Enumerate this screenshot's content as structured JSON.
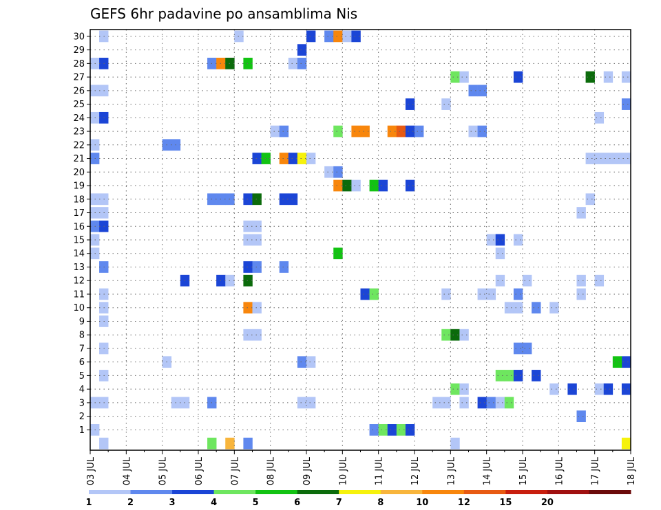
{
  "chart_data": {
    "type": "heatmap",
    "title": "GEFS 6hr padavine po ansamblima Nis",
    "xlabel": "",
    "ylabel": "",
    "x_tick_labels": [
      "03 JUL",
      "04 JUL",
      "05 JUL",
      "06 JUL",
      "07 JUL",
      "08 JUL",
      "09 JUL",
      "10 JUL",
      "11 JUL",
      "12 JUL",
      "13 JUL",
      "14 JUL",
      "15 JUL",
      "16 JUL",
      "17 JUL",
      "18 JUL"
    ],
    "y_tick_labels": [
      "1",
      "2",
      "3",
      "4",
      "5",
      "6",
      "7",
      "8",
      "9",
      "10",
      "11",
      "12",
      "13",
      "14",
      "15",
      "16",
      "17",
      "18",
      "19",
      "20",
      "21",
      "22",
      "23",
      "24",
      "25",
      "26",
      "27",
      "28",
      "29",
      "30"
    ],
    "xlim": [
      0,
      60
    ],
    "ylim": [
      0,
      30
    ],
    "grid": true,
    "legend": {
      "placement": "bottom",
      "colors": [
        "#b3c6f7",
        "#5f88ee",
        "#1b45d6",
        "#6ee65f",
        "#12c312",
        "#0b6b0b",
        "#f6f20c",
        "#f8b53c",
        "#f8860c",
        "#e85a12",
        "#c81e0e",
        "#a01010",
        "#6b0a0a"
      ],
      "labels": [
        "1",
        "2",
        "3",
        "4",
        "5",
        "6",
        "7",
        "8",
        "10",
        "12",
        "15",
        "20"
      ]
    },
    "cells": [
      [
        1,
        30,
        1
      ],
      [
        16,
        30,
        1
      ],
      [
        24,
        30,
        3
      ],
      [
        26,
        30,
        2
      ],
      [
        27,
        30,
        9
      ],
      [
        28,
        30,
        1
      ],
      [
        29,
        30,
        3
      ],
      [
        23,
        29,
        3
      ],
      [
        0,
        28,
        1
      ],
      [
        1,
        28,
        3
      ],
      [
        13,
        28,
        2
      ],
      [
        14,
        28,
        9
      ],
      [
        15,
        28,
        6
      ],
      [
        17,
        28,
        5
      ],
      [
        22,
        28,
        1
      ],
      [
        23,
        28,
        2
      ],
      [
        40,
        27,
        4
      ],
      [
        41,
        27,
        1
      ],
      [
        47,
        27,
        3
      ],
      [
        55,
        27,
        6
      ],
      [
        57,
        27,
        1
      ],
      [
        59,
        27,
        1
      ],
      [
        0,
        26,
        1
      ],
      [
        1,
        26,
        1
      ],
      [
        42,
        26,
        2
      ],
      [
        43,
        26,
        2
      ],
      [
        35,
        25,
        3
      ],
      [
        39,
        25,
        1
      ],
      [
        59,
        25,
        2
      ],
      [
        0,
        24,
        1
      ],
      [
        1,
        24,
        3
      ],
      [
        56,
        24,
        1
      ],
      [
        20,
        23,
        1
      ],
      [
        21,
        23,
        2
      ],
      [
        27,
        23,
        4
      ],
      [
        29,
        23,
        9
      ],
      [
        30,
        23,
        9
      ],
      [
        33,
        23,
        9
      ],
      [
        34,
        23,
        10
      ],
      [
        35,
        23,
        3
      ],
      [
        36,
        23,
        2
      ],
      [
        42,
        23,
        1
      ],
      [
        43,
        23,
        2
      ],
      [
        0,
        22,
        1
      ],
      [
        8,
        22,
        2
      ],
      [
        9,
        22,
        2
      ],
      [
        0,
        21,
        2
      ],
      [
        18,
        21,
        3
      ],
      [
        19,
        21,
        5
      ],
      [
        21,
        21,
        9
      ],
      [
        22,
        21,
        3
      ],
      [
        23,
        21,
        7
      ],
      [
        24,
        21,
        1
      ],
      [
        55,
        21,
        1
      ],
      [
        56,
        21,
        1
      ],
      [
        57,
        21,
        1
      ],
      [
        58,
        21,
        1
      ],
      [
        59,
        21,
        1
      ],
      [
        26,
        20,
        1
      ],
      [
        27,
        20,
        2
      ],
      [
        27,
        19,
        9
      ],
      [
        28,
        19,
        6
      ],
      [
        29,
        19,
        1
      ],
      [
        31,
        19,
        5
      ],
      [
        32,
        19,
        3
      ],
      [
        35,
        19,
        3
      ],
      [
        0,
        18,
        1
      ],
      [
        1,
        18,
        1
      ],
      [
        13,
        18,
        2
      ],
      [
        14,
        18,
        2
      ],
      [
        15,
        18,
        2
      ],
      [
        17,
        18,
        3
      ],
      [
        18,
        18,
        6
      ],
      [
        21,
        18,
        3
      ],
      [
        22,
        18,
        3
      ],
      [
        55,
        18,
        1
      ],
      [
        0,
        17,
        1
      ],
      [
        1,
        17,
        1
      ],
      [
        54,
        17,
        1
      ],
      [
        0,
        16,
        2
      ],
      [
        1,
        16,
        3
      ],
      [
        17,
        16,
        1
      ],
      [
        18,
        16,
        1
      ],
      [
        0,
        15,
        1
      ],
      [
        17,
        15,
        1
      ],
      [
        18,
        15,
        1
      ],
      [
        44,
        15,
        1
      ],
      [
        45,
        15,
        3
      ],
      [
        47,
        15,
        1
      ],
      [
        0,
        14,
        1
      ],
      [
        27,
        14,
        5
      ],
      [
        45,
        14,
        1
      ],
      [
        1,
        13,
        2
      ],
      [
        17,
        13,
        3
      ],
      [
        18,
        13,
        2
      ],
      [
        21,
        13,
        2
      ],
      [
        10,
        12,
        3
      ],
      [
        14,
        12,
        3
      ],
      [
        15,
        12,
        1
      ],
      [
        17,
        12,
        6
      ],
      [
        45,
        12,
        1
      ],
      [
        48,
        12,
        1
      ],
      [
        54,
        12,
        1
      ],
      [
        56,
        12,
        1
      ],
      [
        1,
        11,
        1
      ],
      [
        30,
        11,
        3
      ],
      [
        31,
        11,
        4
      ],
      [
        39,
        11,
        1
      ],
      [
        43,
        11,
        1
      ],
      [
        44,
        11,
        1
      ],
      [
        47,
        11,
        2
      ],
      [
        54,
        11,
        1
      ],
      [
        1,
        10,
        1
      ],
      [
        17,
        10,
        9
      ],
      [
        18,
        10,
        1
      ],
      [
        46,
        10,
        1
      ],
      [
        47,
        10,
        1
      ],
      [
        49,
        10,
        2
      ],
      [
        51,
        10,
        1
      ],
      [
        1,
        9,
        1
      ],
      [
        17,
        8,
        1
      ],
      [
        18,
        8,
        1
      ],
      [
        39,
        8,
        4
      ],
      [
        40,
        8,
        6
      ],
      [
        41,
        8,
        1
      ],
      [
        1,
        7,
        1
      ],
      [
        47,
        7,
        2
      ],
      [
        48,
        7,
        2
      ],
      [
        8,
        6,
        1
      ],
      [
        23,
        6,
        2
      ],
      [
        24,
        6,
        1
      ],
      [
        59,
        6,
        3
      ],
      [
        58,
        6,
        5
      ],
      [
        1,
        5,
        1
      ],
      [
        45,
        5,
        4
      ],
      [
        46,
        5,
        4
      ],
      [
        47,
        5,
        3
      ],
      [
        49,
        5,
        3
      ],
      [
        40,
        4,
        4
      ],
      [
        41,
        4,
        1
      ],
      [
        51,
        4,
        1
      ],
      [
        53,
        4,
        3
      ],
      [
        56,
        4,
        1
      ],
      [
        57,
        4,
        3
      ],
      [
        59,
        4,
        3
      ],
      [
        0,
        3,
        1
      ],
      [
        1,
        3,
        1
      ],
      [
        9,
        3,
        1
      ],
      [
        10,
        3,
        1
      ],
      [
        13,
        3,
        2
      ],
      [
        23,
        3,
        1
      ],
      [
        24,
        3,
        1
      ],
      [
        38,
        3,
        1
      ],
      [
        39,
        3,
        1
      ],
      [
        41,
        3,
        1
      ],
      [
        43,
        3,
        3
      ],
      [
        44,
        3,
        2
      ],
      [
        45,
        3,
        1
      ],
      [
        46,
        3,
        4
      ],
      [
        54,
        2,
        2
      ],
      [
        0,
        1,
        1
      ],
      [
        31,
        1,
        2
      ],
      [
        32,
        1,
        4
      ],
      [
        33,
        1,
        3
      ],
      [
        34,
        1,
        4
      ],
      [
        35,
        1,
        3
      ],
      [
        1,
        0,
        1
      ],
      [
        13,
        0,
        4
      ],
      [
        15,
        0,
        8
      ],
      [
        17,
        0,
        2
      ],
      [
        40,
        0,
        1
      ],
      [
        59,
        0,
        7
      ]
    ]
  }
}
